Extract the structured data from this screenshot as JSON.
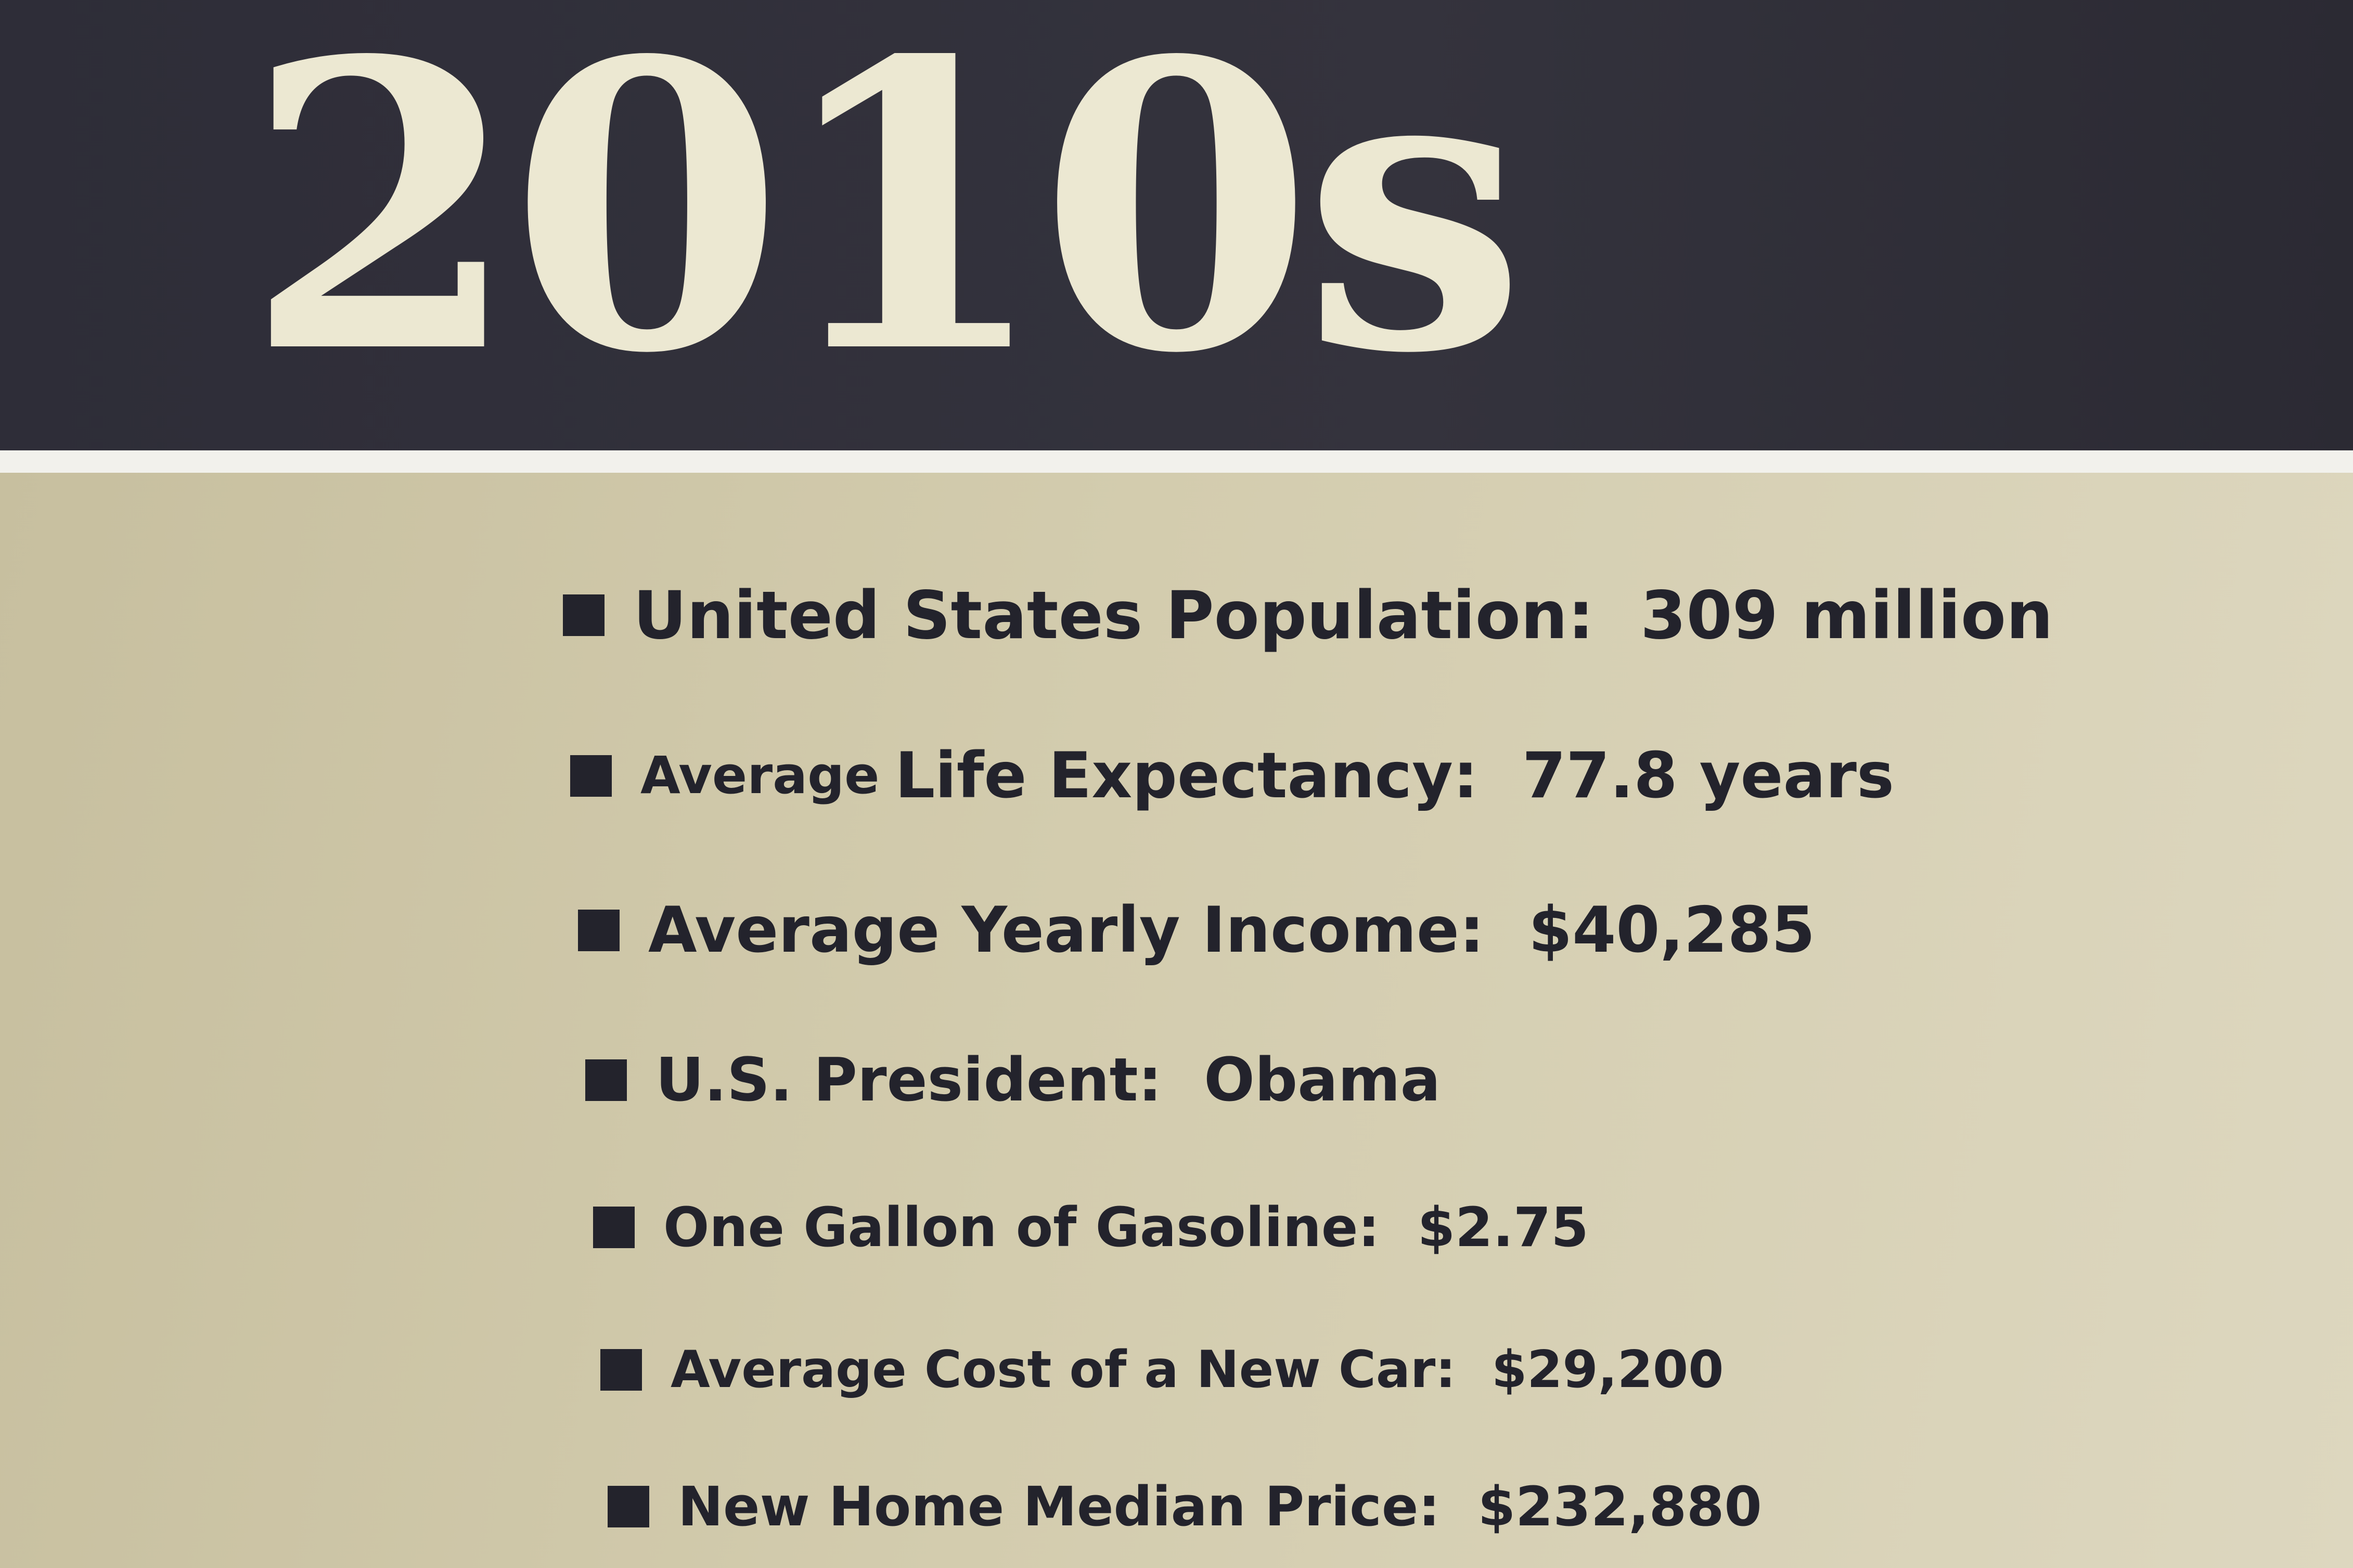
{
  "header": {
    "title": "2010s"
  },
  "items": [
    {
      "label": "United States Population:",
      "value": "309 million"
    },
    {
      "prefix": "Average",
      "label": "Life Expectancy:",
      "value": "77.8 years"
    },
    {
      "label": "Average Yearly Income:",
      "value": "$40,285"
    },
    {
      "label": "U.S. President:",
      "value": "Obama"
    },
    {
      "label": "One Gallon of Gasoline:",
      "value": "$2.75"
    },
    {
      "label": "Average Cost of a New Car:",
      "value": "$29,200"
    },
    {
      "label": "New Home Median Price:",
      "value": "$232,880"
    }
  ]
}
